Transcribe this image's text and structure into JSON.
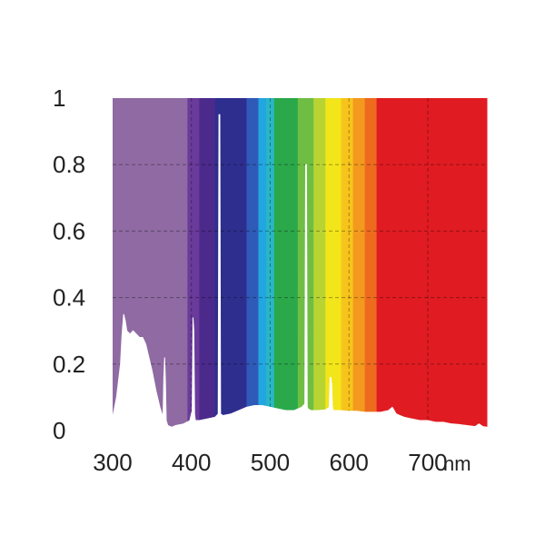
{
  "chart_data": {
    "type": "area",
    "title": "",
    "xlabel": "",
    "ylabel": "",
    "x_unit": "nm",
    "xlim": [
      300,
      775
    ],
    "ylim": [
      0,
      1
    ],
    "x_ticks": [
      300,
      400,
      500,
      600,
      700
    ],
    "y_ticks": [
      0,
      0.2,
      0.4,
      0.6,
      0.8,
      1
    ],
    "y_tick_labels": [
      "0",
      "0.2",
      "0.4",
      "0.6",
      "0.8",
      "1"
    ],
    "grid": "dashed",
    "background": "visible-spectrum color bands",
    "spectrum_bands": [
      {
        "x_start": 300,
        "x_end": 395,
        "color": "#8f6aa3"
      },
      {
        "x_start": 395,
        "x_end": 410,
        "color": "#6a3b9a"
      },
      {
        "x_start": 410,
        "x_end": 430,
        "color": "#4b2a8c"
      },
      {
        "x_start": 430,
        "x_end": 470,
        "color": "#2e2e8f"
      },
      {
        "x_start": 470,
        "x_end": 485,
        "color": "#2f5ab8"
      },
      {
        "x_start": 485,
        "x_end": 495,
        "color": "#22a6e0"
      },
      {
        "x_start": 495,
        "x_end": 505,
        "color": "#29b6c6"
      },
      {
        "x_start": 505,
        "x_end": 535,
        "color": "#2aa84a"
      },
      {
        "x_start": 535,
        "x_end": 555,
        "color": "#6fbe44"
      },
      {
        "x_start": 555,
        "x_end": 570,
        "color": "#b8d432"
      },
      {
        "x_start": 570,
        "x_end": 590,
        "color": "#f2e51a"
      },
      {
        "x_start": 590,
        "x_end": 605,
        "color": "#f7c41c"
      },
      {
        "x_start": 605,
        "x_end": 620,
        "color": "#f39a1e"
      },
      {
        "x_start": 620,
        "x_end": 635,
        "color": "#ee6a1f"
      },
      {
        "x_start": 635,
        "x_end": 775,
        "color": "#e01b22"
      }
    ],
    "series": [
      {
        "color": "#ffffff",
        "x": [
          300,
          305,
          310,
          312,
          314,
          316,
          318,
          322,
          326,
          330,
          334,
          338,
          342,
          346,
          350,
          355,
          360,
          364,
          365,
          366,
          367,
          368,
          370,
          375,
          380,
          390,
          398,
          401,
          402,
          403,
          404,
          405,
          410,
          420,
          430,
          434,
          435,
          436,
          437,
          440,
          450,
          460,
          470,
          480,
          490,
          500,
          510,
          520,
          530,
          540,
          544,
          545,
          546,
          547,
          548,
          552,
          560,
          570,
          575,
          576,
          577,
          578,
          579,
          580,
          590,
          600,
          610,
          620,
          630,
          640,
          650,
          655,
          660,
          665,
          670,
          680,
          690,
          700,
          710,
          720,
          730,
          740,
          750,
          760,
          765,
          770,
          775
        ],
        "y": [
          0.04,
          0.1,
          0.2,
          0.29,
          0.35,
          0.33,
          0.3,
          0.29,
          0.3,
          0.29,
          0.28,
          0.28,
          0.26,
          0.22,
          0.18,
          0.12,
          0.07,
          0.04,
          0.16,
          0.22,
          0.15,
          0.03,
          0.015,
          0.01,
          0.015,
          0.02,
          0.03,
          0.06,
          0.34,
          0.3,
          0.05,
          0.03,
          0.03,
          0.035,
          0.04,
          0.05,
          0.95,
          0.95,
          0.05,
          0.045,
          0.05,
          0.06,
          0.07,
          0.075,
          0.075,
          0.07,
          0.065,
          0.06,
          0.06,
          0.07,
          0.08,
          0.8,
          0.8,
          0.07,
          0.065,
          0.06,
          0.06,
          0.062,
          0.07,
          0.16,
          0.16,
          0.14,
          0.07,
          0.06,
          0.06,
          0.058,
          0.058,
          0.055,
          0.055,
          0.055,
          0.06,
          0.07,
          0.05,
          0.045,
          0.04,
          0.035,
          0.03,
          0.03,
          0.025,
          0.025,
          0.02,
          0.018,
          0.015,
          0.012,
          0.02,
          0.012,
          0.01
        ]
      }
    ]
  }
}
